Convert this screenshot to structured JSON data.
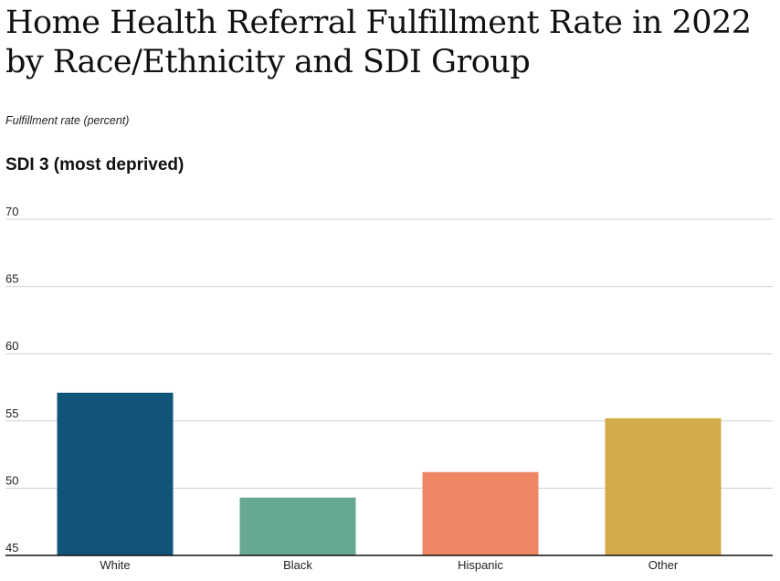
{
  "title": "Home Health Referral Fulfillment Rate in 2022 by Race/Ethnicity and SDI Group",
  "subtitle": "Fulfillment rate (percent)",
  "panel_title": "SDI 3 (most deprived)",
  "chart_data": {
    "type": "bar",
    "title": "Home Health Referral Fulfillment Rate in 2022 by Race/Ethnicity and SDI Group",
    "subtitle": "SDI 3 (most deprived)",
    "ylabel": "Fulfillment rate (percent)",
    "categories": [
      "White",
      "Black",
      "Hispanic",
      "Other"
    ],
    "values": [
      57.1,
      49.3,
      51.2,
      55.2
    ],
    "colors": [
      "#10547a",
      "#66a894",
      "#f08764",
      "#d4ab4b"
    ],
    "ylim": [
      45,
      70
    ],
    "yticks": [
      45,
      50,
      55,
      60,
      65,
      70
    ],
    "grid": true
  }
}
